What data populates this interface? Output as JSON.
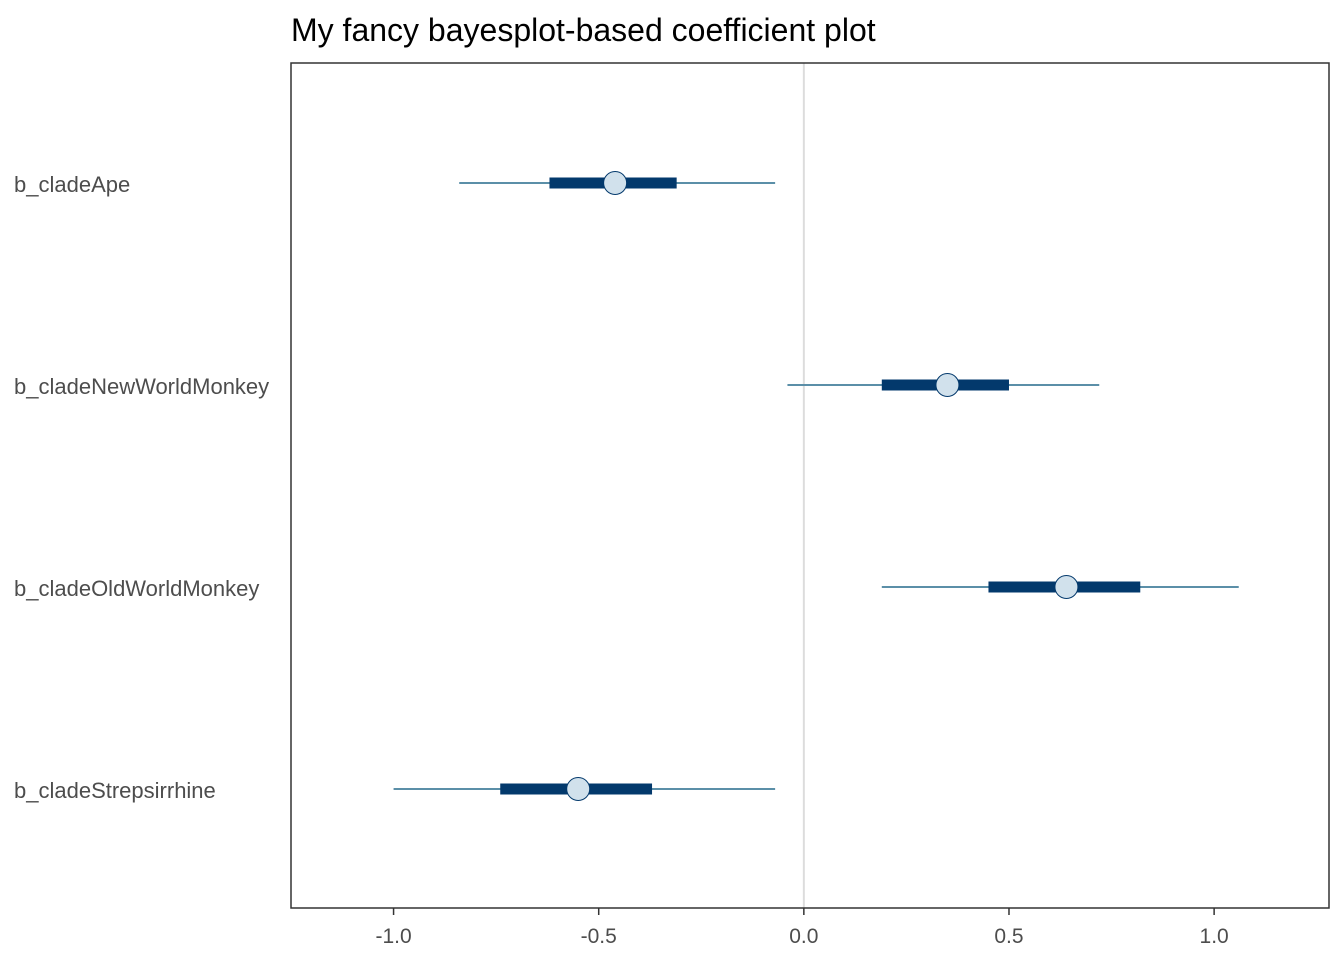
{
  "chart_data": {
    "type": "interval",
    "title": "My fancy bayesplot-based coefficient plot",
    "xlabel": "",
    "ylabel": "",
    "xlim": [
      -1.25,
      1.28
    ],
    "x_ticks": [
      -1.0,
      -0.5,
      0.0,
      0.5,
      1.0
    ],
    "x_tick_labels": [
      "-1.0",
      "-0.5",
      "0.0",
      "0.5",
      "1.0"
    ],
    "reference_line": 0.0,
    "grid": false,
    "legend": "none",
    "categories": [
      "b_cladeApe",
      "b_cladeNewWorldMonkey",
      "b_cladeOldWorldMonkey",
      "b_cladeStrepsirrhine"
    ],
    "series": [
      {
        "point": -0.46,
        "inner": [
          -0.62,
          -0.31
        ],
        "outer": [
          -0.84,
          -0.07
        ]
      },
      {
        "point": 0.35,
        "inner": [
          0.19,
          0.5
        ],
        "outer": [
          -0.04,
          0.72
        ]
      },
      {
        "point": 0.64,
        "inner": [
          0.45,
          0.82
        ],
        "outer": [
          0.19,
          1.06
        ]
      },
      {
        "point": -0.55,
        "inner": [
          -0.74,
          -0.37
        ],
        "outer": [
          -1.0,
          -0.07
        ]
      }
    ],
    "colors": {
      "outer_line": "#5b8fa8",
      "inner_line": "#03396c",
      "point_fill": "#d1e1ec",
      "point_stroke": "#03396c",
      "reference_line": "#dcdcdc",
      "panel_border": "#333333",
      "label_text": "#4d4d4d"
    }
  }
}
